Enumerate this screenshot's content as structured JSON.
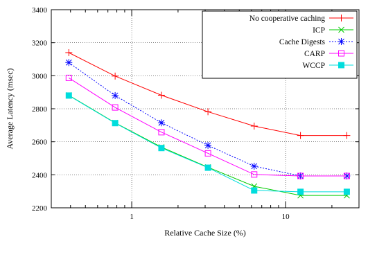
{
  "chart_data": {
    "type": "line",
    "title": "",
    "xlabel": "Relative Cache Size (%)",
    "ylabel": "Average Latency (msec)",
    "xscale": "log",
    "xlim": [
      0.3,
      30
    ],
    "ylim": [
      2200,
      3400
    ],
    "xticks": [
      {
        "value": 1,
        "label": "1"
      },
      {
        "value": 10,
        "label": "10"
      }
    ],
    "yticks": [
      {
        "value": 2200,
        "label": "2200"
      },
      {
        "value": 2400,
        "label": "2400"
      },
      {
        "value": 2600,
        "label": "2600"
      },
      {
        "value": 2800,
        "label": "2800"
      },
      {
        "value": 3000,
        "label": "3000"
      },
      {
        "value": 3200,
        "label": "3200"
      },
      {
        "value": 3400,
        "label": "3400"
      }
    ],
    "grid": true,
    "legend_position": "top-right",
    "x": [
      0.39,
      0.78,
      1.56,
      3.13,
      6.25,
      12.5,
      25
    ],
    "series": [
      {
        "name": "No cooperative caching",
        "color": "#ff0000",
        "marker": "plus",
        "dash": "solid",
        "values": [
          3140,
          2998,
          2882,
          2782,
          2695,
          2638,
          2638
        ]
      },
      {
        "name": "ICP",
        "color": "#00cc00",
        "marker": "x",
        "dash": "solid",
        "values": [
          2882,
          2715,
          2567,
          2446,
          2330,
          2275,
          2275
        ]
      },
      {
        "name": "Cache Digests",
        "color": "#0000ff",
        "marker": "star",
        "dash": "dotted",
        "values": [
          3080,
          2880,
          2715,
          2578,
          2452,
          2393,
          2393
        ]
      },
      {
        "name": "CARP",
        "color": "#ff00ff",
        "marker": "square",
        "dash": "solid",
        "values": [
          2987,
          2808,
          2658,
          2530,
          2402,
          2393,
          2393
        ]
      },
      {
        "name": "WCCP",
        "color": "#00dddd",
        "marker": "filled-square",
        "dash": "solid",
        "values": [
          2880,
          2713,
          2562,
          2443,
          2305,
          2297,
          2297
        ]
      }
    ]
  }
}
